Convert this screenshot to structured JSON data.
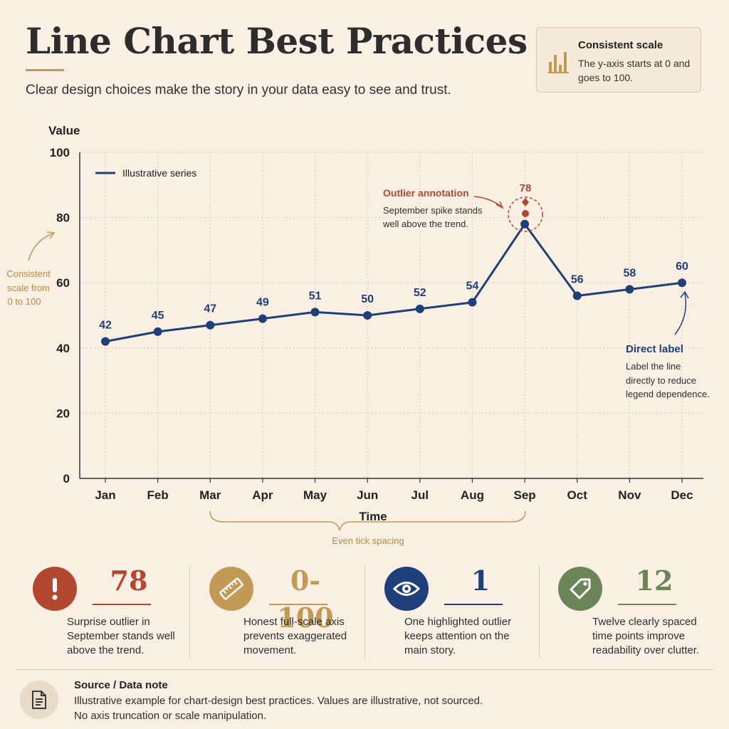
{
  "header": {
    "title": "Line Chart Best Practices",
    "subtitle": "Clear design choices make the story in your data easy to see and trust."
  },
  "info_card": {
    "title": "Consistent scale",
    "body": "The y-axis starts at 0 and goes to 100.",
    "icon": "bar-chart-icon"
  },
  "colors": {
    "line": "#1f3f7a",
    "outlier": "#b4472f",
    "accent_gold": "#c39a55",
    "green": "#6b8559",
    "background": "#f9efe2"
  },
  "chart_data": {
    "type": "line",
    "categories": [
      "Jan",
      "Feb",
      "Mar",
      "Apr",
      "May",
      "Jun",
      "Jul",
      "Aug",
      "Sep",
      "Oct",
      "Nov",
      "Dec"
    ],
    "series": [
      {
        "name": "Illustrative series",
        "values": [
          42,
          45,
          47,
          49,
          51,
          50,
          52,
          54,
          78,
          56,
          58,
          60
        ]
      }
    ],
    "data_labels": [
      "42",
      "45",
      "47",
      "49",
      "51",
      "50",
      "52",
      "54",
      "78",
      "56",
      "58",
      "60"
    ],
    "xlabel": "Time",
    "ylabel": "Value",
    "ylim": [
      0,
      100
    ],
    "yticks": [
      0,
      20,
      40,
      60,
      80,
      100
    ],
    "grid": true,
    "legend": "top-left",
    "annotations": {
      "outlier_title": "Outlier annotation",
      "outlier_body": [
        "September spike stands",
        "well above the trend."
      ],
      "outlier_value": "78",
      "direct_label_title": "Direct label",
      "direct_label_body": [
        "Label the line",
        "directly to reduce",
        "legend dependence."
      ],
      "consistent_scale": [
        "Consistent",
        "scale from",
        "0 to 100"
      ],
      "tick_spacing": "Even tick spacing"
    }
  },
  "stats": [
    {
      "value": "78",
      "desc": "Surprise outlier in September stands well above the trend.",
      "icon": "exclamation-icon",
      "color": "#b4472f"
    },
    {
      "value": "0-100",
      "desc": "Honest full-scale axis prevents exaggerated movement.",
      "icon": "ruler-icon",
      "color": "#c39a55"
    },
    {
      "value": "1",
      "desc": "One highlighted outlier keeps attention on the main story.",
      "icon": "eye-icon",
      "color": "#1f3f7a"
    },
    {
      "value": "12",
      "desc": "Twelve clearly spaced time points improve readability over clutter.",
      "icon": "tag-icon",
      "color": "#6b8559"
    }
  ],
  "footer": {
    "title": "Source / Data note",
    "lines": [
      "Illustrative example for chart-design best practices. Values are illustrative, not sourced.",
      "No axis truncation or scale manipulation."
    ],
    "icon": "document-icon"
  }
}
